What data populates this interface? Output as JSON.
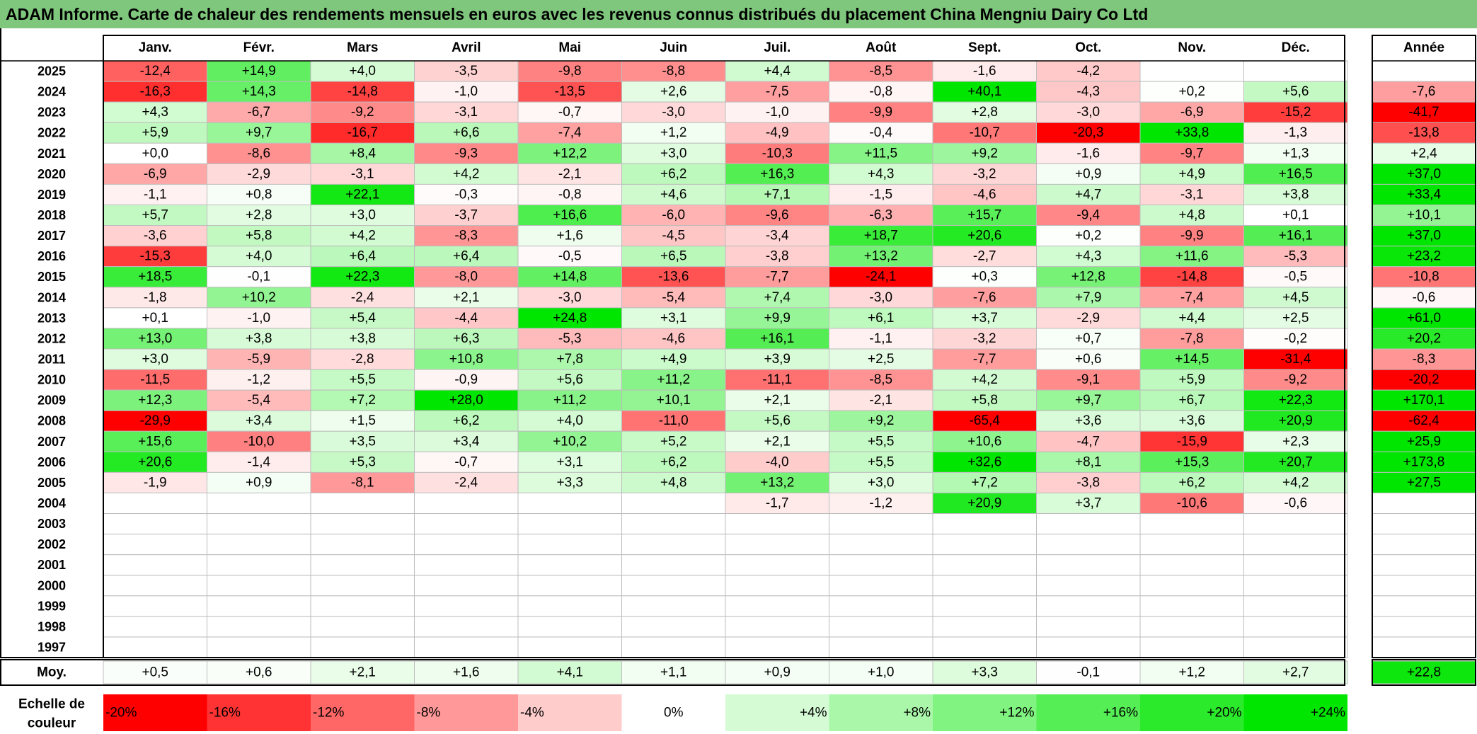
{
  "chart_data": {
    "type": "heatmap",
    "title": "ADAM Informe. Carte de chaleur des rendements mensuels en euros avec les revenus connus distribués du placement China Mengniu Dairy Co Ltd",
    "months": [
      "Janv.",
      "Févr.",
      "Mars",
      "Avril",
      "Mai",
      "Juin",
      "Juil.",
      "Août",
      "Sept.",
      "Oct.",
      "Nov.",
      "Déc."
    ],
    "year_header": "Année",
    "rows": [
      {
        "year": "2025",
        "values": [
          "-12,4",
          "+14,9",
          "+4,0",
          "-3,5",
          "-9,8",
          "-8,8",
          "+4,4",
          "-8,5",
          "-1,6",
          "-4,2",
          "",
          ""
        ],
        "annual": ""
      },
      {
        "year": "2024",
        "values": [
          "-16,3",
          "+14,3",
          "-14,8",
          "-1,0",
          "-13,5",
          "+2,6",
          "-7,5",
          "-0,8",
          "+40,1",
          "-4,3",
          "+0,2",
          "+5,6"
        ],
        "annual": "-7,6"
      },
      {
        "year": "2023",
        "values": [
          "+4,3",
          "-6,7",
          "-9,2",
          "-3,1",
          "-0,7",
          "-3,0",
          "-1,0",
          "-9,9",
          "+2,8",
          "-3,0",
          "-6,9",
          "-15,2"
        ],
        "annual": "-41,7"
      },
      {
        "year": "2022",
        "values": [
          "+5,9",
          "+9,7",
          "-16,7",
          "+6,6",
          "-7,4",
          "+1,2",
          "-4,9",
          "-0,4",
          "-10,7",
          "-20,3",
          "+33,8",
          "-1,3"
        ],
        "annual": "-13,8"
      },
      {
        "year": "2021",
        "values": [
          "+0,0",
          "-8,6",
          "+8,4",
          "-9,3",
          "+12,2",
          "+3,0",
          "-10,3",
          "+11,5",
          "+9,2",
          "-1,6",
          "-9,7",
          "+1,3"
        ],
        "annual": "+2,4"
      },
      {
        "year": "2020",
        "values": [
          "-6,9",
          "-2,9",
          "-3,1",
          "+4,2",
          "-2,1",
          "+6,2",
          "+16,3",
          "+4,3",
          "-3,2",
          "+0,9",
          "+4,9",
          "+16,5"
        ],
        "annual": "+37,0"
      },
      {
        "year": "2019",
        "values": [
          "-1,1",
          "+0,8",
          "+22,1",
          "-0,3",
          "-0,8",
          "+4,6",
          "+7,1",
          "-1,5",
          "-4,6",
          "+4,7",
          "-3,1",
          "+3,8"
        ],
        "annual": "+33,4"
      },
      {
        "year": "2018",
        "values": [
          "+5,7",
          "+2,8",
          "+3,0",
          "-3,7",
          "+16,6",
          "-6,0",
          "-9,6",
          "-6,3",
          "+15,7",
          "-9,4",
          "+4,8",
          "+0,1"
        ],
        "annual": "+10,1"
      },
      {
        "year": "2017",
        "values": [
          "-3,6",
          "+5,8",
          "+4,2",
          "-8,3",
          "+1,6",
          "-4,5",
          "-3,4",
          "+18,7",
          "+20,6",
          "+0,2",
          "-9,9",
          "+16,1"
        ],
        "annual": "+37,0"
      },
      {
        "year": "2016",
        "values": [
          "-15,3",
          "+4,0",
          "+6,4",
          "+6,4",
          "-0,5",
          "+6,5",
          "-3,8",
          "+13,2",
          "-2,7",
          "+4,3",
          "+11,6",
          "-5,3"
        ],
        "annual": "+23,2"
      },
      {
        "year": "2015",
        "values": [
          "+18,5",
          "-0,1",
          "+22,3",
          "-8,0",
          "+14,8",
          "-13,6",
          "-7,7",
          "-24,1",
          "+0,3",
          "+12,8",
          "-14,8",
          "-0,5"
        ],
        "annual": "-10,8"
      },
      {
        "year": "2014",
        "values": [
          "-1,8",
          "+10,2",
          "-2,4",
          "+2,1",
          "-3,0",
          "-5,4",
          "+7,4",
          "-3,0",
          "-7,6",
          "+7,9",
          "-7,4",
          "+4,5"
        ],
        "annual": "-0,6"
      },
      {
        "year": "2013",
        "values": [
          "+0,1",
          "-1,0",
          "+5,4",
          "-4,4",
          "+24,8",
          "+3,1",
          "+9,9",
          "+6,1",
          "+3,7",
          "-2,9",
          "+4,4",
          "+2,5"
        ],
        "annual": "+61,0"
      },
      {
        "year": "2012",
        "values": [
          "+13,0",
          "+3,8",
          "+3,8",
          "+6,3",
          "-5,3",
          "-4,6",
          "+16,1",
          "-1,1",
          "-3,2",
          "+0,7",
          "-7,8",
          "-0,2"
        ],
        "annual": "+20,2"
      },
      {
        "year": "2011",
        "values": [
          "+3,0",
          "-5,9",
          "-2,8",
          "+10,8",
          "+7,8",
          "+4,9",
          "+3,9",
          "+2,5",
          "-7,7",
          "+0,6",
          "+14,5",
          "-31,4"
        ],
        "annual": "-8,3"
      },
      {
        "year": "2010",
        "values": [
          "-11,5",
          "-1,2",
          "+5,5",
          "-0,9",
          "+5,6",
          "+11,2",
          "-11,1",
          "-8,5",
          "+4,2",
          "-9,1",
          "+5,9",
          "-9,2"
        ],
        "annual": "-20,2"
      },
      {
        "year": "2009",
        "values": [
          "+12,3",
          "-5,4",
          "+7,2",
          "+28,0",
          "+11,2",
          "+10,1",
          "+2,1",
          "-2,1",
          "+5,8",
          "+9,7",
          "+6,7",
          "+22,3"
        ],
        "annual": "+170,1"
      },
      {
        "year": "2008",
        "values": [
          "-29,9",
          "+3,4",
          "+1,5",
          "+6,2",
          "+4,0",
          "-11,0",
          "+5,6",
          "+9,2",
          "-65,4",
          "+3,6",
          "+3,6",
          "+20,9"
        ],
        "annual": "-62,4"
      },
      {
        "year": "2007",
        "values": [
          "+15,6",
          "-10,0",
          "+3,5",
          "+3,4",
          "+10,2",
          "+5,2",
          "+2,1",
          "+5,5",
          "+10,6",
          "-4,7",
          "-15,9",
          "+2,3"
        ],
        "annual": "+25,9"
      },
      {
        "year": "2006",
        "values": [
          "+20,6",
          "-1,4",
          "+5,3",
          "-0,7",
          "+3,1",
          "+6,2",
          "-4,0",
          "+5,5",
          "+32,6",
          "+8,1",
          "+15,3",
          "+20,7"
        ],
        "annual": "+173,8"
      },
      {
        "year": "2005",
        "values": [
          "-1,9",
          "+0,9",
          "-8,1",
          "-2,4",
          "+3,3",
          "+4,8",
          "+13,2",
          "+3,0",
          "+7,2",
          "-3,8",
          "+6,2",
          "+4,2"
        ],
        "annual": "+27,5"
      },
      {
        "year": "2004",
        "values": [
          "",
          "",
          "",
          "",
          "",
          "",
          "-1,7",
          "-1,2",
          "+20,9",
          "+3,7",
          "-10,6",
          "-0,6"
        ],
        "annual": ""
      },
      {
        "year": "2003",
        "values": [
          "",
          "",
          "",
          "",
          "",
          "",
          "",
          "",
          "",
          "",
          "",
          ""
        ],
        "annual": ""
      },
      {
        "year": "2002",
        "values": [
          "",
          "",
          "",
          "",
          "",
          "",
          "",
          "",
          "",
          "",
          "",
          ""
        ],
        "annual": ""
      },
      {
        "year": "2001",
        "values": [
          "",
          "",
          "",
          "",
          "",
          "",
          "",
          "",
          "",
          "",
          "",
          ""
        ],
        "annual": ""
      },
      {
        "year": "2000",
        "values": [
          "",
          "",
          "",
          "",
          "",
          "",
          "",
          "",
          "",
          "",
          "",
          ""
        ],
        "annual": ""
      },
      {
        "year": "1999",
        "values": [
          "",
          "",
          "",
          "",
          "",
          "",
          "",
          "",
          "",
          "",
          "",
          ""
        ],
        "annual": ""
      },
      {
        "year": "1998",
        "values": [
          "",
          "",
          "",
          "",
          "",
          "",
          "",
          "",
          "",
          "",
          "",
          ""
        ],
        "annual": ""
      },
      {
        "year": "1997",
        "values": [
          "",
          "",
          "",
          "",
          "",
          "",
          "",
          "",
          "",
          "",
          "",
          ""
        ],
        "annual": ""
      }
    ],
    "average": {
      "label": "Moy.",
      "values": [
        "+0,5",
        "+0,6",
        "+2,1",
        "+1,6",
        "+4,1",
        "+1,1",
        "+0,9",
        "+1,0",
        "+3,3",
        "-0,1",
        "+1,2",
        "+2,7"
      ],
      "annual": "+22,8"
    },
    "color_scale": {
      "label_line1": "Echelle de",
      "label_line2": "couleur",
      "stops": [
        "-20%",
        "-16%",
        "-12%",
        "-8%",
        "-4%",
        "0%",
        "+4%",
        "+8%",
        "+12%",
        "+16%",
        "+20%",
        "+24%"
      ],
      "stop_values": [
        -20,
        -16,
        -12,
        -8,
        -4,
        0,
        4,
        8,
        12,
        16,
        20,
        24
      ]
    },
    "colors": {
      "negative_max": "#ff0000",
      "positive_max": "#00e600",
      "neutral": "#ffffff",
      "title_bar": "#7fc77d"
    }
  }
}
